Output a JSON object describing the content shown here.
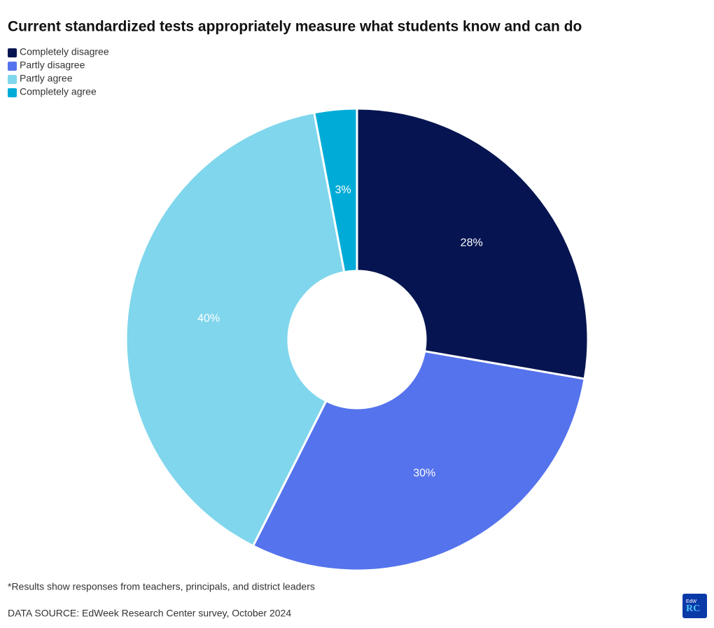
{
  "chart_data": {
    "type": "donut",
    "title": "Current standardized tests appropriately measure what students know and can do",
    "categories": [
      "Completely disagree",
      "Partly disagree",
      "Partly agree",
      "Completely agree"
    ],
    "values": [
      28,
      30,
      40,
      3
    ],
    "value_labels": [
      "28%",
      "30%",
      "40%",
      "3%"
    ],
    "colors": [
      "#061551",
      "#5573ec",
      "#80d6ec",
      "#00acd7"
    ],
    "legend": "top-left",
    "footnote": "*Results show responses from teachers, principals, and district leaders",
    "source": "DATA SOURCE: EdWeek Research Center survey, October 2024",
    "logo": {
      "top": "EdW",
      "bottom": "RC"
    }
  }
}
